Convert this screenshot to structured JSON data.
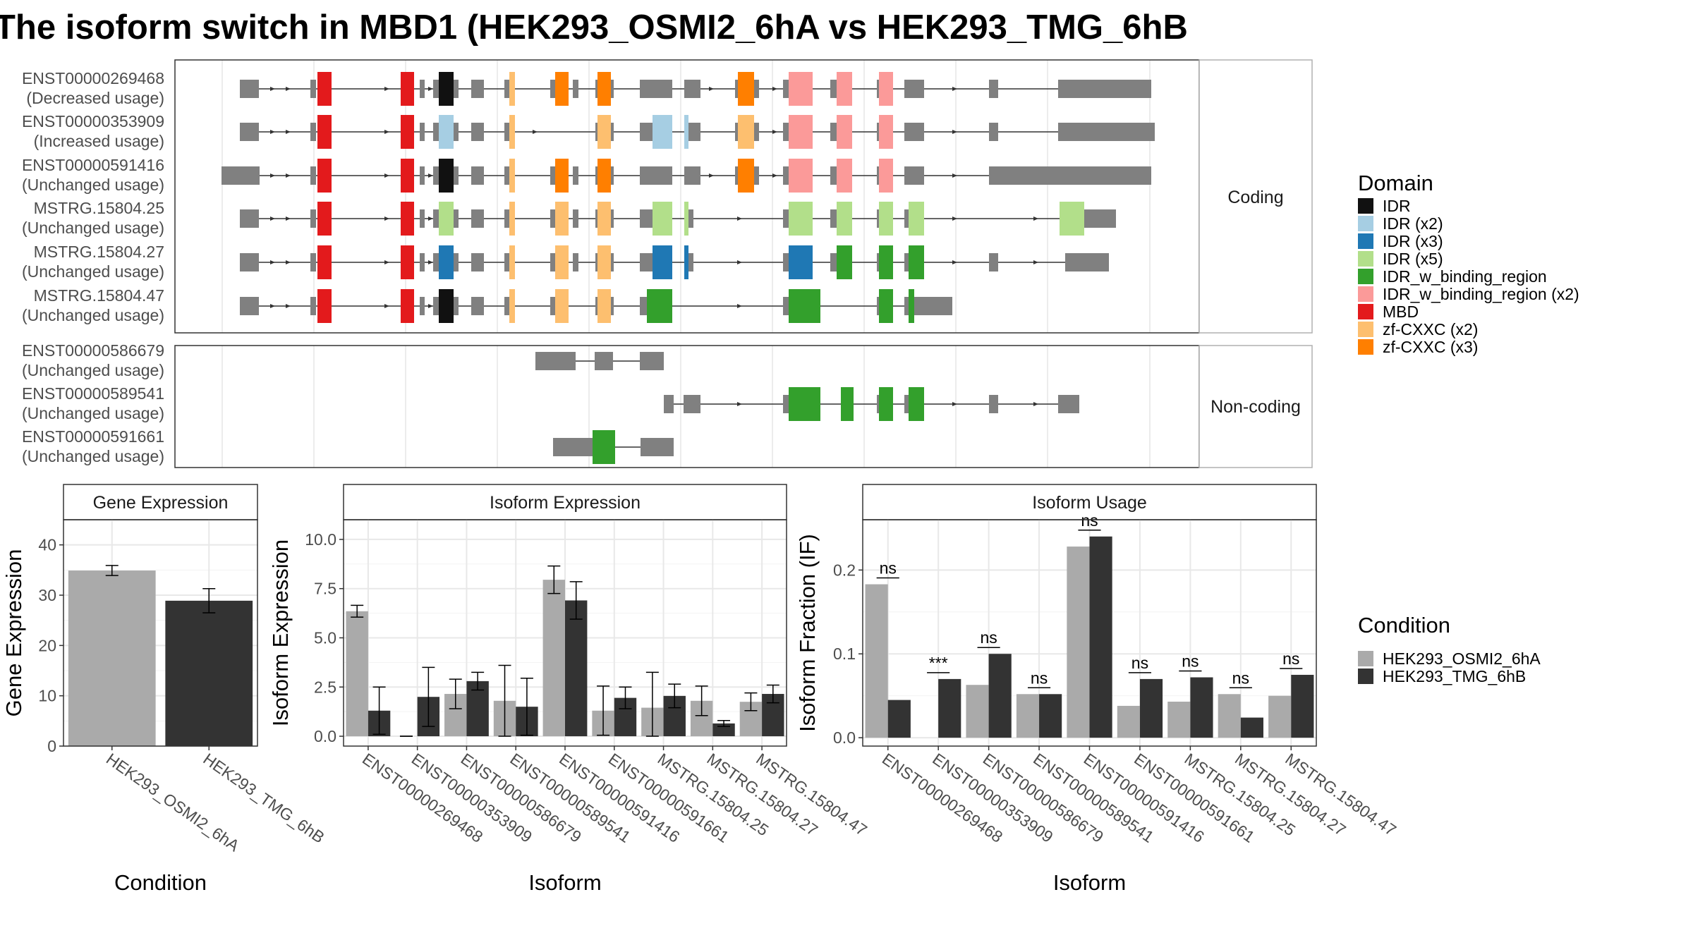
{
  "title": "The isoform switch in MBD1 (HEK293_OSMI2_6hA vs HEK293_TMG_6hB",
  "colors": {
    "exon": "#808080",
    "IDR": "#111111",
    "IDR (x2)": "#a6cee3",
    "IDR (x3)": "#1f78b4",
    "IDR (x5)": "#b2df8a",
    "IDR_w_binding_region": "#33a02c",
    "IDR_w_binding_region (x2)": "#fb9a99",
    "MBD": "#e31a1c",
    "zf-CXXC (x2)": "#fdbf6f",
    "zf-CXXC (x3)": "#ff7f00",
    "cond1": "#aaaaaa",
    "cond2": "#333333"
  },
  "chart_data": [
    {
      "type": "gene-structure",
      "panels": [
        {
          "label": "Coding",
          "tracks": [
            {
              "name": "ENST00000269468",
              "usage": "(Decreased usage)"
            },
            {
              "name": "ENST00000353909",
              "usage": "(Increased usage)"
            },
            {
              "name": "ENST00000591416",
              "usage": "(Unchanged usage)"
            },
            {
              "name": "MSTRG.15804.25",
              "usage": "(Unchanged usage)"
            },
            {
              "name": "MSTRG.15804.27",
              "usage": "(Unchanged usage)"
            },
            {
              "name": "MSTRG.15804.47",
              "usage": "(Unchanged usage)"
            }
          ]
        },
        {
          "label": "Non-coding",
          "tracks": [
            {
              "name": "ENST00000586679",
              "usage": "(Unchanged usage)"
            },
            {
              "name": "ENST00000589541",
              "usage": "(Unchanged usage)"
            },
            {
              "name": "ENST00000591661",
              "usage": "(Unchanged usage)"
            }
          ]
        }
      ],
      "legend": {
        "title": "Domain",
        "entries": [
          "IDR",
          "IDR (x2)",
          "IDR (x3)",
          "IDR (x5)",
          "IDR_w_binding_region",
          "IDR_w_binding_region (x2)",
          "MBD",
          "zf-CXXC (x2)",
          "zf-CXXC (x3)"
        ]
      }
    },
    {
      "type": "bar",
      "panel_title": "Gene Expression",
      "xlabel": "Condition",
      "ylabel": "Gene Expression",
      "ylim": [
        0,
        45
      ],
      "yticks": [
        0,
        10,
        20,
        30,
        40
      ],
      "categories": [
        "HEK293_OSMI2_6hA",
        "HEK293_TMG_6hB"
      ],
      "values": [
        34.9,
        28.9
      ],
      "errors": [
        1.0,
        2.4
      ]
    },
    {
      "type": "bar",
      "panel_title": "Isoform Expression",
      "xlabel": "Isoform",
      "ylabel": "Isoform Expression",
      "ylim": [
        -0.5,
        11
      ],
      "yticks": [
        "0.0",
        "2.5",
        "5.0",
        "7.5",
        "10.0"
      ],
      "categories": [
        "ENST00000269468",
        "ENST00000353909",
        "ENST00000586679",
        "ENST00000589541",
        "ENST00000591416",
        "ENST00000591661",
        "MSTRG.15804.25",
        "MSTRG.15804.27",
        "MSTRG.15804.47"
      ],
      "series": [
        {
          "name": "HEK293_OSMI2_6hA",
          "values": [
            6.35,
            0.0,
            2.15,
            1.8,
            7.95,
            1.3,
            1.45,
            1.8,
            1.75
          ],
          "errors": [
            0.3,
            0.0,
            0.75,
            1.8,
            0.7,
            1.25,
            1.8,
            0.75,
            0.45
          ]
        },
        {
          "name": "HEK293_TMG_6hB",
          "values": [
            1.3,
            2.0,
            2.8,
            1.5,
            6.9,
            1.95,
            2.05,
            0.65,
            2.15
          ],
          "errors": [
            1.2,
            1.5,
            0.45,
            1.45,
            0.95,
            0.55,
            0.6,
            0.15,
            0.45
          ]
        }
      ]
    },
    {
      "type": "bar",
      "panel_title": "Isoform Usage",
      "xlabel": "Isoform",
      "ylabel": "Isoform Fraction (IF)",
      "ylim": [
        -0.01,
        0.26
      ],
      "yticks": [
        "0.0",
        "0.1",
        "0.2"
      ],
      "categories": [
        "ENST00000269468",
        "ENST00000353909",
        "ENST00000586679",
        "ENST00000589541",
        "ENST00000591416",
        "ENST00000591661",
        "MSTRG.15804.25",
        "MSTRG.15804.27",
        "MSTRG.15804.47"
      ],
      "series": [
        {
          "name": "HEK293_OSMI2_6hA",
          "values": [
            0.183,
            0.0,
            0.063,
            0.052,
            0.228,
            0.038,
            0.043,
            0.052,
            0.05
          ]
        },
        {
          "name": "HEK293_TMG_6hB",
          "values": [
            0.045,
            0.07,
            0.1,
            0.052,
            0.24,
            0.07,
            0.072,
            0.024,
            0.075
          ]
        }
      ],
      "significance": [
        "ns",
        "***",
        "ns",
        "ns",
        "ns",
        "ns",
        "ns",
        "ns",
        "ns"
      ]
    }
  ],
  "condition_legend": {
    "title": "Condition",
    "entries": [
      "HEK293_OSMI2_6hA",
      "HEK293_TMG_6hB"
    ]
  }
}
